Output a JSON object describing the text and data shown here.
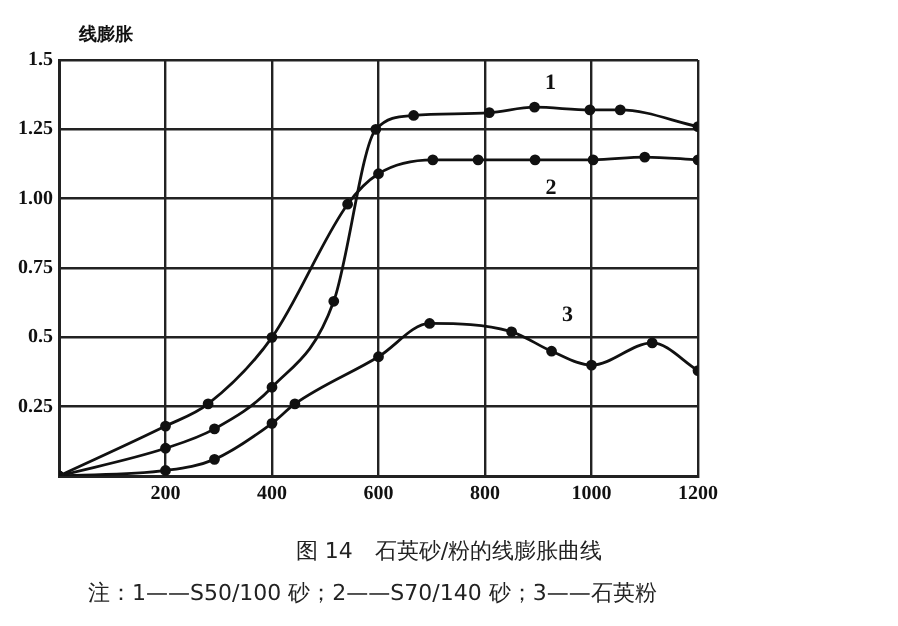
{
  "chart_data": {
    "type": "line",
    "title": "图 14　石英砂/粉的线膨胀曲线",
    "ylabel": "线膨胀",
    "annotations": [
      "注：1——S50/100 砂；2——S70/140 砂；3——石英粉"
    ],
    "series": [
      {
        "name": "1",
        "color": "#111111",
        "x": [
          0,
          200,
          292,
          400,
          516,
          595,
          666,
          808,
          893,
          997,
          1054,
          1200
        ],
        "values": [
          0,
          0.1,
          0.17,
          0.32,
          0.63,
          1.25,
          1.3,
          1.31,
          1.33,
          1.32,
          1.32,
          1.26
        ]
      },
      {
        "name": "2",
        "color": "#111111",
        "x": [
          0,
          200,
          280,
          400,
          542,
          600,
          702,
          787,
          894,
          1003,
          1100,
          1200
        ],
        "values": [
          0,
          0.18,
          0.26,
          0.5,
          0.98,
          1.09,
          1.14,
          1.14,
          1.14,
          1.14,
          1.15,
          1.14
        ]
      },
      {
        "name": "3",
        "color": "#111111",
        "x": [
          0,
          200,
          292,
          400,
          443,
          600,
          696,
          850,
          925,
          1000,
          1114,
          1200
        ],
        "values": [
          0,
          0.02,
          0.06,
          0.19,
          0.26,
          0.43,
          0.55,
          0.52,
          0.45,
          0.4,
          0.48,
          0.38
        ]
      }
    ],
    "xlim": [
      0,
      1200
    ],
    "xticks": [
      200,
      400,
      600,
      800,
      1000,
      1200
    ],
    "ylim": [
      0,
      1.5
    ],
    "yticks": [
      {
        "value": 0,
        "label": null
      },
      0.25,
      0.5,
      0.75,
      {
        "value": 1,
        "label": "1.00"
      },
      1.25,
      1.5
    ],
    "grid": true,
    "legend": false,
    "marker": "circle",
    "line_style": "solid"
  }
}
